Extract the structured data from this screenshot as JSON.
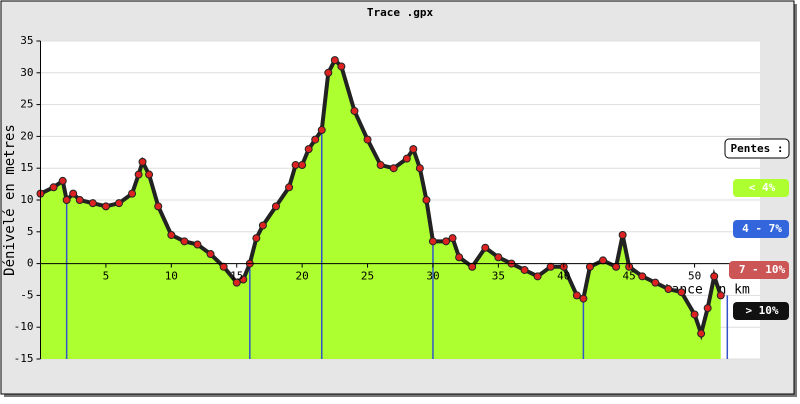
{
  "chart_data": {
    "type": "area",
    "title": "Trace .gpx",
    "y_label": "Dénivelé en metres",
    "x_label": "Distance en km",
    "legend_title": "Pentes :",
    "legend": [
      {
        "name": "< 4%",
        "color": "#adff2f"
      },
      {
        "name": "4 - 7%",
        "color": "#3366dd"
      },
      {
        "name": "7 - 10%",
        "color": "#cc5555"
      },
      {
        "name": "> 10%",
        "color": "#111111"
      }
    ],
    "color": "#adff2f",
    "marker_color": "#dd2222",
    "x": [
      0,
      1,
      1.7,
      2,
      2.5,
      3,
      4,
      5,
      6,
      7,
      7.5,
      7.8,
      8.3,
      9,
      10,
      11,
      12,
      13,
      14,
      15,
      15.5,
      16,
      16.5,
      17,
      18,
      19,
      19.5,
      20,
      20.5,
      21,
      21.5,
      22,
      22.5,
      23,
      24,
      25,
      26,
      27,
      28,
      28.5,
      29,
      29.5,
      30,
      31,
      31.5,
      32,
      33,
      34,
      35,
      36,
      37,
      38,
      39,
      40,
      41,
      41.5,
      42,
      43,
      44,
      44.5,
      45,
      46,
      47,
      48,
      49,
      50,
      50.5,
      51,
      51.5,
      52
    ],
    "values": [
      11,
      12,
      13,
      10,
      11,
      10,
      9.5,
      9,
      9.5,
      11,
      14,
      16,
      14,
      9,
      4.5,
      3.5,
      3,
      1.5,
      -0.5,
      -3,
      -2.5,
      0,
      4,
      6,
      9,
      12,
      15.5,
      15.5,
      18,
      19.5,
      21,
      30,
      32,
      31,
      24,
      19.5,
      15.5,
      15,
      16.5,
      18,
      15,
      10,
      3.5,
      3.5,
      4,
      1,
      -0.5,
      2.5,
      1,
      0,
      -1,
      -2,
      -0.5,
      -0.5,
      -5,
      -5.5,
      -0.5,
      0.5,
      -0.5,
      4.5,
      -0.5,
      -2,
      -3,
      -4,
      -4.5,
      -8,
      -11,
      -7,
      -2,
      -5
    ],
    "markers": [
      2,
      16,
      21.5,
      30,
      41.5,
      52.5
    ],
    "marker_line_color": "#3355cc",
    "xlim": [
      0,
      55
    ],
    "ylim": [
      -15,
      35
    ],
    "xticks": [
      5,
      10,
      15,
      20,
      25,
      30,
      35,
      40,
      45,
      50
    ],
    "yticks": [
      -15,
      -10,
      -5,
      0,
      5,
      10,
      15,
      20,
      25,
      30,
      35
    ],
    "grid": true
  }
}
